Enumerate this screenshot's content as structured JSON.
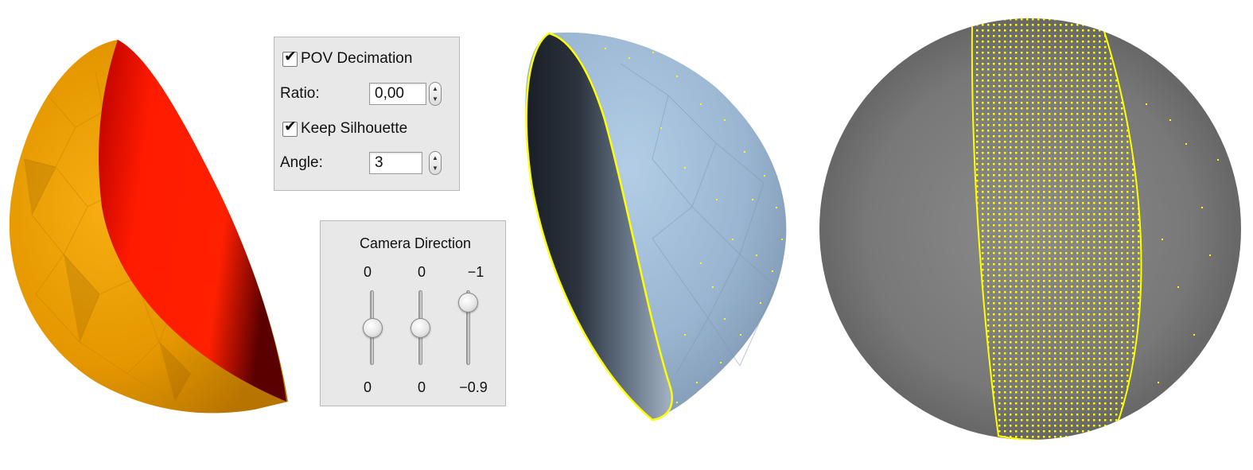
{
  "decimation_panel": {
    "pov_decimation_label": "POV Decimation",
    "ratio_label": "Ratio:",
    "ratio_value": "0,00",
    "keep_silhouette_label": "Keep Silhouette",
    "angle_label": "Angle:",
    "angle_value": "3"
  },
  "camera_panel": {
    "title": "Camera Direction",
    "top_values": [
      "0",
      "0",
      "−1"
    ],
    "bottom_values": [
      "0",
      "0",
      "−0.9"
    ],
    "slider_levels": [
      0.5,
      0.5,
      0.17
    ]
  },
  "colors": {
    "mesh_orange": "#f5a300",
    "mesh_red": "#ff1a00",
    "mesh_blue": "#9ab6d3",
    "silhouette_yellow": "#ffff00",
    "sphere_gray": "#808080"
  }
}
